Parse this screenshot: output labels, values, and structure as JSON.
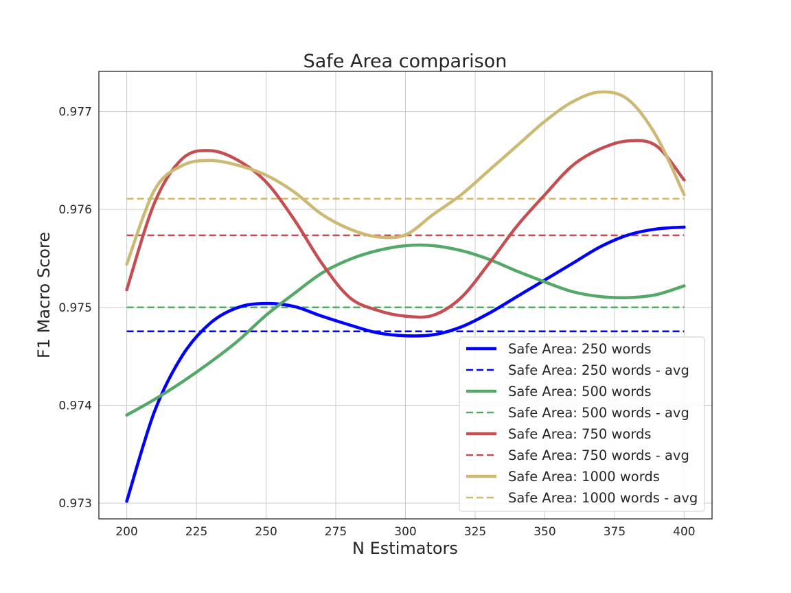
{
  "chart_data": {
    "type": "line",
    "title": "Safe Area comparison",
    "xlabel": "N Estimators",
    "ylabel": "F1 Macro Score",
    "xlim": [
      190,
      410
    ],
    "ylim": [
      0.97284,
      0.97741
    ],
    "x_ticks": [
      200,
      225,
      250,
      275,
      300,
      325,
      350,
      375,
      400
    ],
    "y_ticks": [
      0.973,
      0.974,
      0.975,
      0.976,
      0.977
    ],
    "x_tick_labels": [
      "200",
      "225",
      "250",
      "275",
      "300",
      "325",
      "350",
      "375",
      "400"
    ],
    "y_tick_labels": [
      "0.973",
      "0.974",
      "0.975",
      "0.976",
      "0.977"
    ],
    "grid": true,
    "legend_position": "lower-right",
    "series": [
      {
        "name": "Safe Area: 250 words",
        "style": "solid",
        "color": "#0000ff",
        "x": [
          200,
          210,
          220,
          230,
          240,
          250,
          260,
          270,
          280,
          290,
          300,
          310,
          320,
          330,
          340,
          350,
          360,
          370,
          380,
          390,
          400
        ],
        "y": [
          0.97302,
          0.97394,
          0.97451,
          0.97484,
          0.975,
          0.97504,
          0.97501,
          0.97491,
          0.97482,
          0.97474,
          0.97471,
          0.97472,
          0.9748,
          0.97494,
          0.97511,
          0.97528,
          0.97545,
          0.97562,
          0.97574,
          0.9758,
          0.97582
        ]
      },
      {
        "name": "Safe Area: 250 words - avg",
        "style": "dashed",
        "color": "#0000ff",
        "x": [
          200,
          400
        ],
        "y": [
          0.974755,
          0.974755
        ]
      },
      {
        "name": "Safe Area: 500 words",
        "style": "solid",
        "color": "#55a868",
        "x": [
          200,
          210,
          220,
          230,
          240,
          250,
          260,
          270,
          280,
          290,
          300,
          310,
          320,
          330,
          340,
          350,
          360,
          370,
          380,
          390,
          400
        ],
        "y": [
          0.9739,
          0.97406,
          0.97424,
          0.97444,
          0.97466,
          0.97492,
          0.97514,
          0.97535,
          0.97549,
          0.97558,
          0.97563,
          0.97563,
          0.97558,
          0.97549,
          0.97537,
          0.97526,
          0.97516,
          0.97511,
          0.9751,
          0.97513,
          0.97522
        ]
      },
      {
        "name": "Safe Area: 500 words - avg",
        "style": "dashed",
        "color": "#55a868",
        "x": [
          200,
          400
        ],
        "y": [
          0.975,
          0.975
        ]
      },
      {
        "name": "Safe Area: 750 words",
        "style": "solid",
        "color": "#c44e52",
        "x": [
          200,
          210,
          220,
          230,
          240,
          250,
          260,
          270,
          280,
          290,
          300,
          310,
          320,
          330,
          340,
          350,
          360,
          370,
          380,
          390,
          400
        ],
        "y": [
          0.97518,
          0.97607,
          0.97652,
          0.9766,
          0.9765,
          0.97628,
          0.9759,
          0.97545,
          0.9751,
          0.97497,
          0.97491,
          0.97492,
          0.9751,
          0.97545,
          0.97583,
          0.97615,
          0.97645,
          0.97662,
          0.9767,
          0.97665,
          0.9763
        ]
      },
      {
        "name": "Safe Area: 750 words - avg",
        "style": "dashed",
        "color": "#c44e52",
        "x": [
          200,
          400
        ],
        "y": [
          0.975735,
          0.975735
        ]
      },
      {
        "name": "Safe Area: 1000 words",
        "style": "solid",
        "color": "#ccb974",
        "x": [
          200,
          210,
          220,
          230,
          240,
          250,
          260,
          270,
          280,
          290,
          300,
          310,
          320,
          330,
          340,
          350,
          360,
          370,
          380,
          390,
          400
        ],
        "y": [
          0.97544,
          0.9762,
          0.97645,
          0.9765,
          0.97645,
          0.97635,
          0.97618,
          0.97595,
          0.9758,
          0.97572,
          0.97574,
          0.97595,
          0.97615,
          0.9764,
          0.97665,
          0.9769,
          0.9771,
          0.9772,
          0.97712,
          0.97675,
          0.97615
        ]
      },
      {
        "name": "Safe Area: 1000 words - avg",
        "style": "dashed",
        "color": "#ccb974",
        "x": [
          200,
          400
        ],
        "y": [
          0.97611,
          0.97611
        ]
      }
    ]
  }
}
